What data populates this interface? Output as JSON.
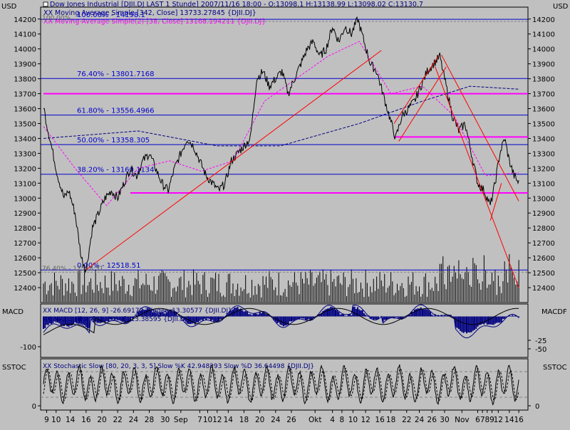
{
  "currency_left": "USD",
  "currency_right": "USD",
  "header_lines": [
    {
      "text": "Dow Jones Industrial [DJII.DJ LAST 1 Stunde] 2007/11/16 18:00 - O:13098.1 H:13138.99 L:13098.02 C:13130.7",
      "color": "#000080"
    },
    {
      "text": "XX Moving Average Simple [342, Close] 13733.27845 {DJII.DJ}",
      "color": "#000080"
    },
    {
      "text": "XX Moving Average Simple(2) [38, Close] 13168.194211 {DJII.DJ}",
      "color": "#ff00ff"
    }
  ],
  "colors": {
    "background": "#c0c0c0",
    "price": "#000000",
    "fib_line": "#0000cc",
    "support_line": "#ff00ff",
    "trend_line": "#ff0000",
    "ma_long": "#000080",
    "ma_short": "#ff00ff",
    "macd_hist": "#000080",
    "trigger": "#000000"
  },
  "chart_data": [
    {
      "type": "line",
      "name": "price",
      "title": "Dow Jones Industrial [DJII.DJ LAST 1 Stunde]",
      "ylim": [
        12300,
        14280
      ],
      "y_ticks": [
        12400,
        12500,
        12600,
        12700,
        12800,
        12900,
        13000,
        13100,
        13200,
        13300,
        13400,
        13500,
        13600,
        13700,
        13800,
        13900,
        14000,
        14100,
        14200
      ],
      "price_path": [
        [
          0,
          13620
        ],
        [
          2,
          13500
        ],
        [
          5,
          13350
        ],
        [
          9,
          13150
        ],
        [
          13,
          13000
        ],
        [
          16,
          13050
        ],
        [
          20,
          12900
        ],
        [
          24,
          12600
        ],
        [
          27,
          12520
        ],
        [
          31,
          12800
        ],
        [
          35,
          12900
        ],
        [
          39,
          13000
        ],
        [
          43,
          13050
        ],
        [
          47,
          13000
        ],
        [
          51,
          13100
        ],
        [
          55,
          13200
        ],
        [
          59,
          13150
        ],
        [
          63,
          13250
        ],
        [
          67,
          13300
        ],
        [
          71,
          13200
        ],
        [
          75,
          13100
        ],
        [
          79,
          13050
        ],
        [
          83,
          13200
        ],
        [
          87,
          13300
        ],
        [
          91,
          13400
        ],
        [
          95,
          13350
        ],
        [
          99,
          13250
        ],
        [
          103,
          13150
        ],
        [
          107,
          13100
        ],
        [
          111,
          13050
        ],
        [
          115,
          13100
        ],
        [
          119,
          13250
        ],
        [
          123,
          13300
        ],
        [
          127,
          13350
        ],
        [
          131,
          13400
        ],
        [
          135,
          13800
        ],
        [
          139,
          13850
        ],
        [
          143,
          13750
        ],
        [
          147,
          13800
        ],
        [
          151,
          13850
        ],
        [
          155,
          13700
        ],
        [
          159,
          13800
        ],
        [
          163,
          13900
        ],
        [
          167,
          14000
        ],
        [
          171,
          14050
        ],
        [
          175,
          13950
        ],
        [
          179,
          14000
        ],
        [
          183,
          14150
        ],
        [
          187,
          14050
        ],
        [
          191,
          14150
        ],
        [
          195,
          14100
        ],
        [
          199,
          14200
        ],
        [
          203,
          14050
        ],
        [
          207,
          13900
        ],
        [
          211,
          13850
        ],
        [
          215,
          13700
        ],
        [
          219,
          13550
        ],
        [
          223,
          13400
        ],
        [
          227,
          13550
        ],
        [
          231,
          13600
        ],
        [
          235,
          13650
        ],
        [
          239,
          13750
        ],
        [
          243,
          13850
        ],
        [
          247,
          13900
        ],
        [
          251,
          13950
        ],
        [
          255,
          13750
        ],
        [
          259,
          13550
        ],
        [
          263,
          13450
        ],
        [
          267,
          13500
        ],
        [
          271,
          13300
        ],
        [
          275,
          13100
        ],
        [
          279,
          13050
        ],
        [
          283,
          12950
        ],
        [
          286,
          13100
        ],
        [
          289,
          13300
        ],
        [
          292,
          13400
        ],
        [
          295,
          13250
        ],
        [
          298,
          13150
        ],
        [
          301,
          13100
        ]
      ],
      "ma_long": [
        [
          0,
          13400
        ],
        [
          60,
          13450
        ],
        [
          110,
          13350
        ],
        [
          150,
          13350
        ],
        [
          200,
          13500
        ],
        [
          240,
          13650
        ],
        [
          270,
          13750
        ],
        [
          301,
          13730
        ]
      ],
      "ma_short": [
        [
          0,
          13480
        ],
        [
          20,
          13200
        ],
        [
          40,
          12950
        ],
        [
          60,
          13200
        ],
        [
          80,
          13250
        ],
        [
          100,
          13180
        ],
        [
          120,
          13250
        ],
        [
          140,
          13650
        ],
        [
          160,
          13800
        ],
        [
          180,
          13950
        ],
        [
          200,
          14050
        ],
        [
          220,
          13700
        ],
        [
          240,
          13750
        ],
        [
          260,
          13550
        ],
        [
          280,
          13150
        ],
        [
          301,
          13170
        ]
      ],
      "fib_levels": [
        {
          "label": "100.00% - 14198.1",
          "value": 14198.1
        },
        {
          "label": "76.40% - 13801.7168",
          "value": 13801.7168
        },
        {
          "label": "61.80% - 13556.4966",
          "value": 13556.4966
        },
        {
          "label": "50.00% - 13358.305",
          "value": 13358.305
        },
        {
          "label": "38.20% - 13160.1134",
          "value": 13160.1134
        },
        {
          "label": "0.00% - 12518.51",
          "value": 12518.51
        }
      ],
      "fib_secondary": [
        {
          "label": "100.00%",
          "value": 14198.1
        },
        {
          "label": "76.40% - 12518.51",
          "value": 12518.51
        }
      ],
      "support_lines": [
        {
          "value": 13700,
          "x_from": 0,
          "x_to": 301
        },
        {
          "value": 13035,
          "x_from": 55,
          "x_to": 301
        },
        {
          "value": 13410,
          "x_from": 222,
          "x_to": 301
        }
      ],
      "trend_lines": [
        {
          "x1": 27,
          "y1": 12520,
          "x2": 214,
          "y2": 13990
        },
        {
          "x1": 222,
          "y1": 13500,
          "x2": 250,
          "y2": 13950
        },
        {
          "x1": 225,
          "y1": 13380,
          "x2": 255,
          "y2": 13880
        },
        {
          "x1": 248,
          "y1": 13880,
          "x2": 301,
          "y2": 12400
        },
        {
          "x1": 252,
          "y1": 13960,
          "x2": 301,
          "y2": 12980
        },
        {
          "x1": 283,
          "y1": 12850,
          "x2": 290,
          "y2": 13100
        }
      ]
    },
    {
      "type": "bar",
      "name": "macd",
      "label": "MACD",
      "label_right": "MACDF",
      "legend": [
        "XX MACD [12, 26, 9] -26.69172 Trigger -13.30577 {DJII.DJ}",
        "XX MACD Filter [12, 26, 9] -13.38595 {DJII.DJ}"
      ],
      "ylim": [
        -140,
        60
      ],
      "y_ticks_left": [
        {
          "label": "-100",
          "value": -100
        }
      ],
      "y_ticks_right": [
        {
          "label": "-25",
          "value": -25
        },
        {
          "label": "-50",
          "value": -50
        }
      ]
    },
    {
      "type": "line",
      "name": "stochastic",
      "label": "SSTOC",
      "label_right": "SSTOC",
      "legend": "XX Stochastic Slow [80, 20, 3, 3, 5] Slow %K 42.948293 Slow %D 36.64498 {DJII.DJ}",
      "ylim": [
        -10,
        110
      ],
      "y_ticks": [
        {
          "label": "0",
          "value": 0
        }
      ],
      "dashed_levels": [
        20,
        80
      ]
    }
  ],
  "x_axis": {
    "labels": [
      {
        "label": "9",
        "pos": 2
      },
      {
        "label": "10",
        "pos": 8
      },
      {
        "label": "14",
        "pos": 17
      },
      {
        "label": "16",
        "pos": 27
      },
      {
        "label": "20",
        "pos": 37
      },
      {
        "label": "22",
        "pos": 47
      },
      {
        "label": "24",
        "pos": 57
      },
      {
        "label": "28",
        "pos": 67
      },
      {
        "label": "30",
        "pos": 77
      },
      {
        "label": "Sep",
        "pos": 87
      },
      {
        "label": "7",
        "pos": 99
      },
      {
        "label": "10",
        "pos": 104
      },
      {
        "label": "12",
        "pos": 110
      },
      {
        "label": "14",
        "pos": 117
      },
      {
        "label": "18",
        "pos": 127
      },
      {
        "label": "20",
        "pos": 137
      },
      {
        "label": "24",
        "pos": 147
      },
      {
        "label": "26",
        "pos": 157
      },
      {
        "label": "Okt",
        "pos": 172
      },
      {
        "label": "4",
        "pos": 183
      },
      {
        "label": "8",
        "pos": 189
      },
      {
        "label": "10",
        "pos": 196
      },
      {
        "label": "12",
        "pos": 204
      },
      {
        "label": "16",
        "pos": 213
      },
      {
        "label": "18",
        "pos": 220
      },
      {
        "label": "22",
        "pos": 230
      },
      {
        "label": "24",
        "pos": 238
      },
      {
        "label": "26",
        "pos": 246
      },
      {
        "label": "30",
        "pos": 254
      },
      {
        "label": "Nov",
        "pos": 265
      },
      {
        "label": "6",
        "pos": 275
      },
      {
        "label": "7",
        "pos": 278
      },
      {
        "label": "8",
        "pos": 281
      },
      {
        "label": "9",
        "pos": 284
      },
      {
        "label": "12",
        "pos": 288
      },
      {
        "label": "14",
        "pos": 295
      },
      {
        "label": "16",
        "pos": 301
      }
    ],
    "max": 305
  }
}
